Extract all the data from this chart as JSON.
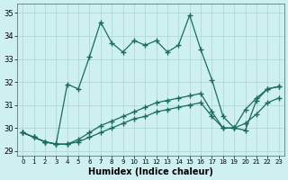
{
  "xlabel": "Humidex (Indice chaleur)",
  "bg_color": "#cff0f0",
  "grid_color": "#b0d8d8",
  "line_color": "#1a6b5a",
  "xlim": [
    -0.5,
    23.5
  ],
  "ylim": [
    28.8,
    35.4
  ],
  "yticks": [
    29,
    30,
    31,
    32,
    33,
    34,
    35
  ],
  "xticks": [
    0,
    1,
    2,
    3,
    4,
    5,
    6,
    7,
    8,
    9,
    10,
    11,
    12,
    13,
    14,
    15,
    16,
    17,
    18,
    19,
    20,
    21,
    22,
    23
  ],
  "line1_x": [
    0,
    1,
    2,
    3,
    4,
    5,
    6,
    7,
    8,
    9,
    10,
    11,
    12,
    13,
    14,
    15,
    16,
    17,
    18,
    19,
    20,
    21,
    22,
    23
  ],
  "line1_y": [
    29.8,
    29.6,
    29.4,
    29.3,
    29.3,
    29.4,
    29.6,
    29.8,
    30.0,
    30.2,
    30.4,
    30.5,
    30.7,
    30.8,
    30.9,
    31.0,
    31.1,
    30.5,
    30.0,
    30.0,
    30.2,
    30.6,
    31.1,
    31.3
  ],
  "line2_x": [
    0,
    1,
    2,
    3,
    4,
    5,
    6,
    7,
    8,
    9,
    10,
    11,
    12,
    13,
    14,
    15,
    16,
    17,
    18,
    19,
    20,
    21,
    22,
    23
  ],
  "line2_y": [
    29.8,
    29.6,
    29.4,
    29.3,
    29.3,
    29.5,
    29.8,
    30.1,
    30.3,
    30.5,
    30.7,
    30.9,
    31.1,
    31.2,
    31.3,
    31.4,
    31.5,
    30.7,
    30.0,
    30.0,
    30.8,
    31.3,
    31.7,
    31.8
  ],
  "line3_x": [
    0,
    1,
    2,
    3,
    4,
    5,
    6,
    7,
    8,
    9,
    10,
    11,
    12,
    13,
    14,
    15,
    16,
    17,
    18,
    19,
    20,
    21,
    22,
    23
  ],
  "line3_y": [
    29.8,
    29.6,
    29.4,
    29.3,
    31.9,
    31.7,
    33.1,
    34.6,
    33.7,
    33.3,
    33.8,
    33.6,
    33.8,
    33.3,
    33.6,
    34.9,
    33.4,
    32.1,
    30.5,
    30.0,
    29.9,
    31.2,
    31.7,
    31.8
  ]
}
